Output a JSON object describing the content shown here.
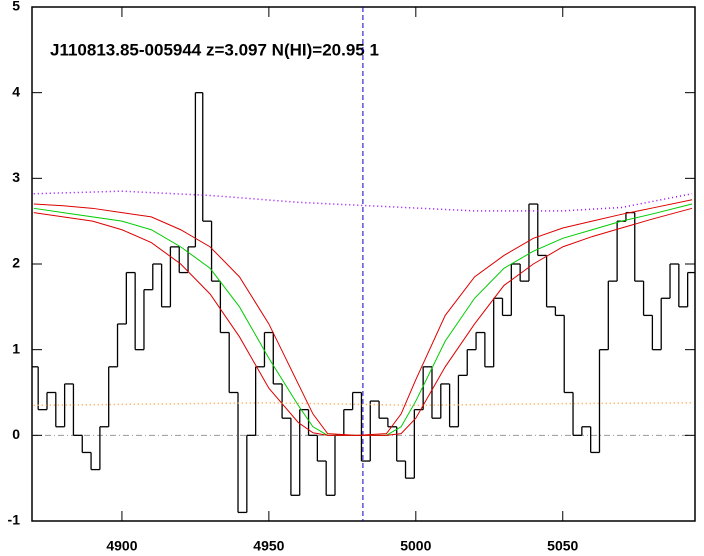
{
  "chart_data": {
    "type": "line",
    "title": "J110813.85-005944 z=3.097 N(HI)=20.95 1",
    "xlim": [
      4869.4,
      5095
    ],
    "ylim": [
      -1,
      5
    ],
    "xticks": [
      4900,
      4950,
      5000,
      5050
    ],
    "yticks": [
      -1,
      0,
      1,
      2,
      3,
      4,
      5
    ],
    "zero_line": 0,
    "vline": 4982,
    "series": [
      {
        "style": "step",
        "color": "#000000",
        "x": [
          4870,
          4873,
          4876,
          4879,
          4882,
          4885,
          4888,
          4891,
          4894,
          4897,
          4900,
          4903,
          4906,
          4909,
          4912,
          4915,
          4918,
          4921,
          4924,
          4926,
          4929,
          4932,
          4935,
          4938,
          4941,
          4944,
          4947,
          4950,
          4953,
          4956,
          4959,
          4962,
          4965,
          4968,
          4971,
          4974,
          4977,
          4980,
          4983,
          4986,
          4989,
          4992,
          4995,
          4998,
          5001,
          5004,
          5007,
          5010,
          5013,
          5016,
          5019,
          5022,
          5025,
          5028,
          5031,
          5034,
          5037,
          5040,
          5043,
          5046,
          5049,
          5052,
          5055,
          5058,
          5061,
          5064,
          5067,
          5070,
          5073,
          5076,
          5079,
          5082,
          5085,
          5088,
          5091,
          5094
        ],
        "values": [
          0.8,
          0.3,
          0.5,
          0.1,
          0.6,
          0.0,
          -0.2,
          -0.4,
          0.1,
          0.8,
          1.3,
          1.9,
          1.0,
          1.7,
          2.0,
          1.5,
          2.2,
          1.9,
          2.2,
          4.0,
          2.5,
          1.8,
          1.2,
          0.5,
          -0.9,
          0.0,
          0.8,
          1.2,
          0.6,
          0.2,
          -0.7,
          0.3,
          0.0,
          -0.3,
          -0.7,
          0.0,
          0.3,
          0.5,
          -0.3,
          0.4,
          0.2,
          0.1,
          -0.3,
          -0.5,
          0.3,
          0.8,
          0.2,
          0.6,
          0.1,
          0.7,
          1.0,
          1.2,
          0.8,
          1.6,
          1.4,
          2.0,
          1.8,
          2.7,
          2.1,
          1.5,
          1.4,
          0.5,
          0.0,
          0.1,
          -0.2,
          1.0,
          1.8,
          2.5,
          2.6,
          1.8,
          1.4,
          1.0,
          1.6,
          2.0,
          1.5,
          1.9
        ]
      },
      {
        "style": "solid",
        "color": "#00cc00",
        "x": [
          4870,
          4880,
          4890,
          4900,
          4910,
          4920,
          4930,
          4940,
          4950,
          4960,
          4965,
          4970,
          4980,
          4990,
          4995,
          5000,
          5010,
          5020,
          5030,
          5040,
          5050,
          5060,
          5070,
          5080,
          5094
        ],
        "values": [
          2.65,
          2.6,
          2.55,
          2.5,
          2.4,
          2.2,
          1.95,
          1.5,
          0.9,
          0.35,
          0.1,
          0.0,
          0,
          0,
          0.1,
          0.4,
          1.1,
          1.6,
          1.95,
          2.15,
          2.3,
          2.4,
          2.5,
          2.58,
          2.7
        ]
      },
      {
        "style": "solid",
        "color": "#dd0000",
        "x": [
          4870,
          4880,
          4890,
          4900,
          4910,
          4920,
          4930,
          4940,
          4950,
          4960,
          4965,
          4970,
          4980,
          4990,
          4995,
          5000,
          5010,
          5020,
          5030,
          5040,
          5050,
          5060,
          5070,
          5080,
          5094
        ],
        "values": [
          2.7,
          2.68,
          2.65,
          2.6,
          2.55,
          2.4,
          2.2,
          1.85,
          1.3,
          0.6,
          0.25,
          0.02,
          0,
          0.02,
          0.25,
          0.65,
          1.4,
          1.85,
          2.1,
          2.3,
          2.42,
          2.5,
          2.58,
          2.65,
          2.75
        ]
      },
      {
        "style": "solid",
        "color": "#dd0000",
        "x": [
          4870,
          4880,
          4890,
          4900,
          4910,
          4920,
          4930,
          4940,
          4950,
          4960,
          4965,
          4970,
          4980,
          4990,
          4995,
          5000,
          5010,
          5020,
          5030,
          5040,
          5050,
          5060,
          5070,
          5080,
          5094
        ],
        "values": [
          2.6,
          2.55,
          2.5,
          2.4,
          2.25,
          2.0,
          1.65,
          1.15,
          0.55,
          0.15,
          0.03,
          0,
          0,
          0,
          0.02,
          0.2,
          0.8,
          1.3,
          1.75,
          2.0,
          2.2,
          2.32,
          2.42,
          2.52,
          2.65
        ]
      },
      {
        "style": "dotted",
        "color": "#9900ff",
        "x": [
          4870,
          4900,
          4930,
          4960,
          4990,
          5020,
          5050,
          5070,
          5094
        ],
        "values": [
          2.82,
          2.85,
          2.8,
          2.72,
          2.67,
          2.62,
          2.62,
          2.66,
          2.82
        ]
      },
      {
        "style": "dotted",
        "color": "#ff9933",
        "x": [
          4870,
          4950,
          5000,
          5050,
          5094
        ],
        "values": [
          0.35,
          0.38,
          0.35,
          0.37,
          0.38
        ]
      }
    ]
  }
}
